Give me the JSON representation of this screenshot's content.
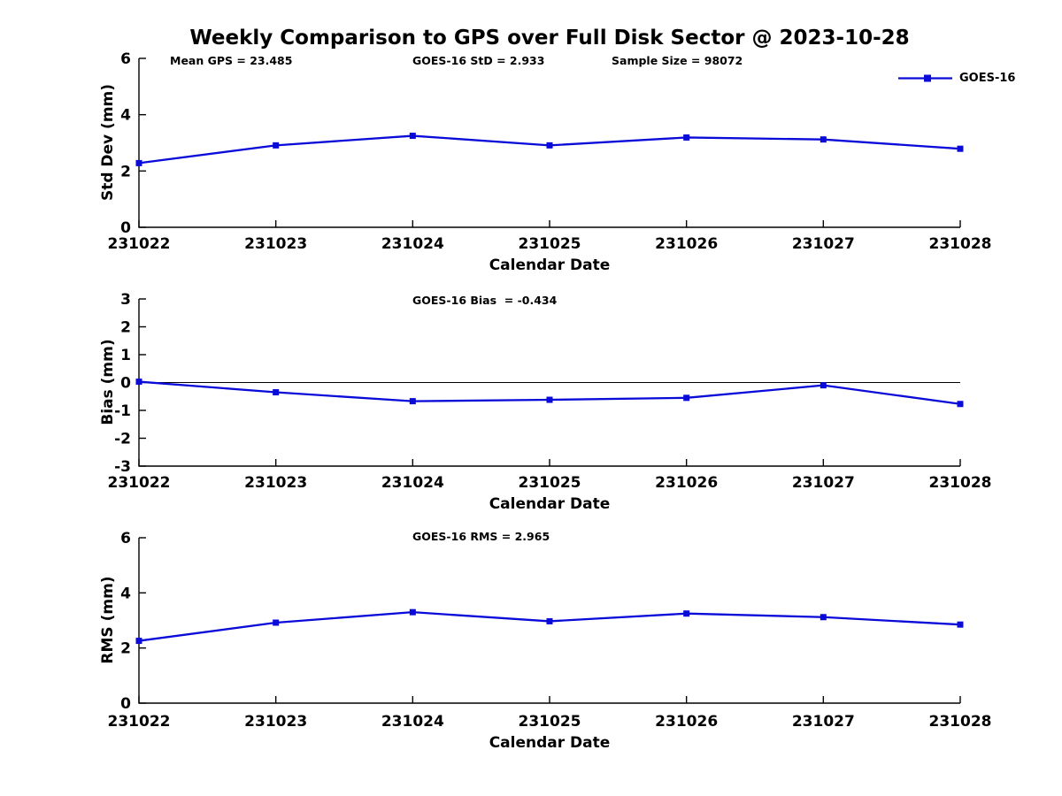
{
  "page": {
    "title": "Weekly Comparison to GPS over Full Disk Sector @ 2023-10-28",
    "background": "#ffffff"
  },
  "legend": {
    "label": "GOES-16",
    "position": "top-right"
  },
  "colors": {
    "series": "#0a0ad9",
    "axis": "#000000",
    "text": "#000000"
  },
  "chart_data": [
    {
      "type": "line",
      "name": "std-dev-subplot",
      "annotations": [
        "Mean GPS = 23.485",
        "GOES-16 StD = 2.933",
        "Sample Size = 98072"
      ],
      "ylabel": "Std Dev (mm)",
      "xlabel": "Calendar Date",
      "categories": [
        "231022",
        "231023",
        "231024",
        "231025",
        "231026",
        "231027",
        "231028"
      ],
      "ylim": [
        0,
        6
      ],
      "yticks": [
        0,
        2,
        4,
        6
      ],
      "grid": false,
      "zero_line": false,
      "series": [
        {
          "name": "GOES-16",
          "marker": "square",
          "values": [
            2.28,
            2.91,
            3.25,
            2.91,
            3.19,
            3.12,
            2.79
          ]
        }
      ]
    },
    {
      "type": "line",
      "name": "bias-subplot",
      "annotations": [
        "GOES-16 Bias  = -0.434"
      ],
      "ylabel": "Bias (mm)",
      "xlabel": "Calendar Date",
      "categories": [
        "231022",
        "231023",
        "231024",
        "231025",
        "231026",
        "231027",
        "231028"
      ],
      "ylim": [
        -3,
        3
      ],
      "yticks": [
        -3,
        -2,
        -1,
        0,
        1,
        2,
        3
      ],
      "grid": false,
      "zero_line": true,
      "series": [
        {
          "name": "GOES-16",
          "marker": "square",
          "values": [
            0.03,
            -0.35,
            -0.67,
            -0.62,
            -0.55,
            -0.1,
            -0.77
          ]
        }
      ]
    },
    {
      "type": "line",
      "name": "rms-subplot",
      "annotations": [
        "GOES-16 RMS = 2.965"
      ],
      "ylabel": "RMS (mm)",
      "xlabel": "Calendar Date",
      "categories": [
        "231022",
        "231023",
        "231024",
        "231025",
        "231026",
        "231027",
        "231028"
      ],
      "ylim": [
        0,
        6
      ],
      "yticks": [
        0,
        2,
        4,
        6
      ],
      "grid": false,
      "zero_line": false,
      "series": [
        {
          "name": "GOES-16",
          "marker": "square",
          "values": [
            2.26,
            2.92,
            3.3,
            2.97,
            3.25,
            3.12,
            2.85
          ]
        }
      ]
    }
  ]
}
